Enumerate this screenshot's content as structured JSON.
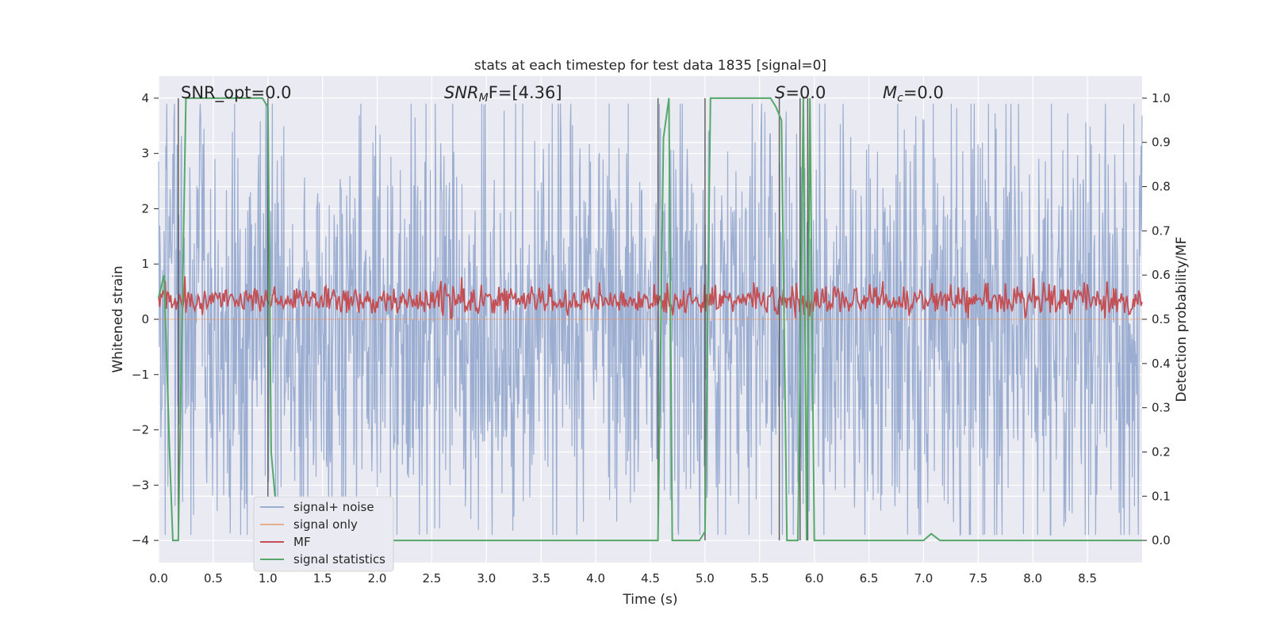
{
  "chart_data": {
    "type": "line",
    "title": "stats at each timestep for test data 1835 [signal=0]",
    "xlabel": "Time (s)",
    "ylabel": "Whitened strain",
    "y2label": "Detection probability/MF",
    "xlim": [
      0.0,
      9.0
    ],
    "ylim": [
      -4.4,
      4.4
    ],
    "y2lim": [
      -0.05,
      1.05
    ],
    "x_ticks": [
      "0.0",
      "0.5",
      "1.0",
      "1.5",
      "2.0",
      "2.5",
      "3.0",
      "3.5",
      "4.0",
      "4.5",
      "5.0",
      "5.5",
      "6.0",
      "6.5",
      "7.0",
      "7.5",
      "8.0",
      "8.5"
    ],
    "y_ticks": [
      "−4",
      "−3",
      "−2",
      "−1",
      "0",
      "1",
      "2",
      "3",
      "4"
    ],
    "y2_ticks": [
      "0.0",
      "0.1",
      "0.2",
      "0.3",
      "0.4",
      "0.5",
      "0.6",
      "0.7",
      "0.8",
      "0.9",
      "1.0"
    ],
    "grid": true,
    "legend_position": "lower-left",
    "annotations": {
      "snr_opt": "SNR_opt=0.0",
      "snr_mf": "SNR",
      "snr_mf_sub": "M",
      "snr_mf_rest": "F=[4.36]",
      "s": "S",
      "s_rest": "=0.0",
      "mc": "M",
      "mc_sub": "c",
      "mc_rest": "=0.0"
    },
    "series": [
      {
        "name": "signal+ noise",
        "color": "#4c72b0",
        "axis": "left",
        "description_level": "noise approx ±2.5 with spikes to ±3.9",
        "amplitude_envelope": 2.6
      },
      {
        "name": "signal only",
        "color": "#dd8452",
        "axis": "left",
        "values_note": "flat zero",
        "y": [
          0,
          0
        ]
      },
      {
        "name": "MF",
        "color": "#c44e52",
        "axis": "left",
        "mean": 0.35,
        "spread": 0.25
      },
      {
        "name": "signal statistics",
        "color": "#55a868",
        "axis": "right",
        "x": [
          0.0,
          0.05,
          0.1,
          0.13,
          0.18,
          0.25,
          0.95,
          1.0,
          1.03,
          1.1,
          4.57,
          4.62,
          4.67,
          4.7,
          4.95,
          5.0,
          5.05,
          5.1,
          5.6,
          5.65,
          5.7,
          5.75,
          5.85,
          5.9,
          5.93,
          5.96,
          6.0,
          7.0,
          7.07,
          7.15,
          9.0
        ],
        "y": [
          0.55,
          0.6,
          0.2,
          0.0,
          0.0,
          1.0,
          1.0,
          0.98,
          0.2,
          0.0,
          0.0,
          0.91,
          1.0,
          0.0,
          0.0,
          0.02,
          1.0,
          1.0,
          1.0,
          0.98,
          0.95,
          0.0,
          0.0,
          1.0,
          0.0,
          1.0,
          0.0,
          0.0,
          0.015,
          0.0,
          0.0
        ]
      }
    ],
    "vertical_lines_x": [
      0.18,
      1.0,
      4.57,
      5.0,
      5.68,
      5.87,
      5.94
    ]
  }
}
